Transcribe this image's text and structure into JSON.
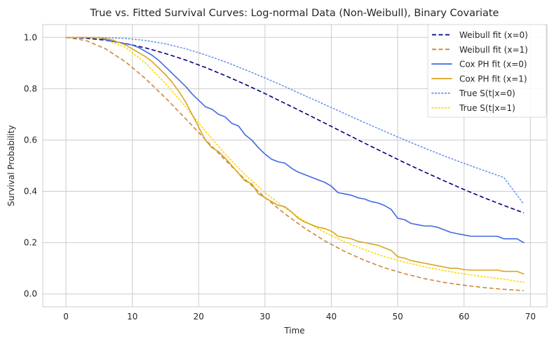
{
  "chart_data": {
    "type": "line",
    "title": "True vs. Fitted Survival Curves: Log-normal Data (Non-Weibull), Binary Covariate",
    "xlabel": "Time",
    "ylabel": "Survival Probability",
    "xlim": [
      -3.5,
      72.5
    ],
    "ylim": [
      -0.05,
      1.05
    ],
    "xticks": [
      0,
      10,
      20,
      30,
      40,
      50,
      60,
      70
    ],
    "xtick_labels": [
      "0",
      "10",
      "20",
      "30",
      "40",
      "50",
      "60",
      "70"
    ],
    "yticks": [
      0.0,
      0.2,
      0.4,
      0.6,
      0.8,
      1.0
    ],
    "ytick_labels": [
      "0.0",
      "0.2",
      "0.4",
      "0.6",
      "0.8",
      "1.0"
    ],
    "grid": true,
    "legend_position": "top-right",
    "series": [
      {
        "name": "Weibull fit (x=0)",
        "color": "#000080",
        "style": "dashed",
        "x": [
          0,
          3,
          6,
          9,
          12,
          15,
          18,
          21,
          24,
          27,
          30,
          33,
          36,
          39,
          42,
          45,
          48,
          51,
          54,
          57,
          60,
          63,
          66,
          69
        ],
        "y": [
          1.0,
          0.997,
          0.989,
          0.976,
          0.959,
          0.937,
          0.912,
          0.883,
          0.851,
          0.817,
          0.781,
          0.743,
          0.705,
          0.666,
          0.627,
          0.588,
          0.55,
          0.512,
          0.476,
          0.441,
          0.407,
          0.375,
          0.345,
          0.316
        ]
      },
      {
        "name": "Weibull fit (x=1)",
        "color": "#CD853F",
        "style": "dashed",
        "x": [
          0,
          3,
          6,
          9,
          12,
          15,
          18,
          21,
          24,
          27,
          30,
          33,
          36,
          39,
          42,
          45,
          48,
          51,
          54,
          57,
          60,
          63,
          66,
          69
        ],
        "y": [
          1.0,
          0.988,
          0.955,
          0.904,
          0.839,
          0.764,
          0.684,
          0.602,
          0.522,
          0.446,
          0.376,
          0.312,
          0.256,
          0.207,
          0.166,
          0.131,
          0.102,
          0.079,
          0.06,
          0.045,
          0.034,
          0.025,
          0.018,
          0.013
        ]
      },
      {
        "name": "Cox PH fit (x=0)",
        "color": "#4169E1",
        "style": "solid",
        "x": [
          0,
          5,
          6,
          8,
          10,
          11,
          12,
          13,
          14,
          15,
          16,
          17,
          18,
          19,
          20,
          21,
          22,
          23,
          24,
          25,
          26,
          27,
          28,
          29,
          30,
          31,
          32,
          33,
          34,
          35,
          36,
          37,
          38,
          39,
          40,
          41,
          42,
          43,
          44,
          45,
          46,
          47,
          48,
          49,
          50,
          51,
          52,
          53,
          54,
          55,
          56,
          57,
          58,
          59,
          60,
          61,
          62,
          63,
          64,
          65,
          66,
          67,
          68,
          69
        ],
        "y": [
          1.0,
          1.0,
          0.99,
          0.98,
          0.97,
          0.96,
          0.945,
          0.93,
          0.91,
          0.885,
          0.86,
          0.835,
          0.81,
          0.78,
          0.755,
          0.73,
          0.72,
          0.7,
          0.69,
          0.665,
          0.655,
          0.62,
          0.6,
          0.57,
          0.545,
          0.525,
          0.515,
          0.51,
          0.49,
          0.475,
          0.465,
          0.455,
          0.445,
          0.435,
          0.42,
          0.395,
          0.39,
          0.385,
          0.375,
          0.37,
          0.36,
          0.355,
          0.345,
          0.33,
          0.295,
          0.29,
          0.275,
          0.27,
          0.265,
          0.265,
          0.26,
          0.25,
          0.24,
          0.235,
          0.23,
          0.225,
          0.225,
          0.225,
          0.225,
          0.225,
          0.215,
          0.215,
          0.215,
          0.2
        ]
      },
      {
        "name": "Cox PH fit (x=1)",
        "color": "#DAA520",
        "style": "solid",
        "x": [
          0,
          5,
          6,
          7,
          8,
          9,
          10,
          11,
          12,
          13,
          14,
          15,
          16,
          17,
          18,
          19,
          20,
          21,
          22,
          23,
          24,
          25,
          26,
          27,
          28,
          29,
          30,
          31,
          32,
          33,
          34,
          35,
          36,
          37,
          38,
          39,
          40,
          41,
          42,
          43,
          44,
          45,
          46,
          47,
          48,
          49,
          50,
          51,
          52,
          53,
          54,
          55,
          56,
          57,
          58,
          59,
          60,
          61,
          62,
          63,
          64,
          65,
          66,
          67,
          68,
          69
        ],
        "y": [
          1.0,
          1.0,
          0.995,
          0.99,
          0.98,
          0.97,
          0.955,
          0.94,
          0.925,
          0.905,
          0.88,
          0.855,
          0.825,
          0.79,
          0.75,
          0.7,
          0.65,
          0.6,
          0.57,
          0.555,
          0.53,
          0.5,
          0.47,
          0.44,
          0.43,
          0.39,
          0.375,
          0.36,
          0.345,
          0.34,
          0.32,
          0.295,
          0.28,
          0.27,
          0.26,
          0.255,
          0.245,
          0.225,
          0.22,
          0.215,
          0.205,
          0.2,
          0.195,
          0.19,
          0.18,
          0.17,
          0.145,
          0.14,
          0.13,
          0.125,
          0.12,
          0.115,
          0.11,
          0.105,
          0.1,
          0.1,
          0.095,
          0.093,
          0.093,
          0.093,
          0.093,
          0.093,
          0.088,
          0.088,
          0.088,
          0.078
        ]
      },
      {
        "name": "True S(t|x=0)",
        "color": "#6495ED",
        "style": "dotted",
        "x": [
          0,
          3,
          6,
          9,
          12,
          15,
          18,
          21,
          24,
          27,
          30,
          33,
          36,
          39,
          42,
          45,
          48,
          51,
          54,
          57,
          60,
          63,
          66,
          69
        ],
        "y": [
          1.0,
          1.0,
          0.999,
          0.996,
          0.988,
          0.975,
          0.956,
          0.932,
          0.905,
          0.874,
          0.842,
          0.808,
          0.773,
          0.738,
          0.703,
          0.668,
          0.634,
          0.601,
          0.569,
          0.538,
          0.509,
          0.481,
          0.454,
          0.35
        ]
      },
      {
        "name": "True S(t|x=1)",
        "color": "#FFD700",
        "style": "dotted",
        "x": [
          0,
          3,
          6,
          9,
          12,
          15,
          18,
          21,
          24,
          27,
          30,
          33,
          36,
          39,
          42,
          45,
          48,
          51,
          54,
          57,
          60,
          63,
          66,
          69
        ],
        "y": [
          1.0,
          0.999,
          0.99,
          0.96,
          0.9,
          0.82,
          0.73,
          0.635,
          0.545,
          0.465,
          0.395,
          0.335,
          0.283,
          0.24,
          0.203,
          0.172,
          0.146,
          0.124,
          0.106,
          0.091,
          0.078,
          0.067,
          0.058,
          0.045
        ]
      }
    ]
  }
}
